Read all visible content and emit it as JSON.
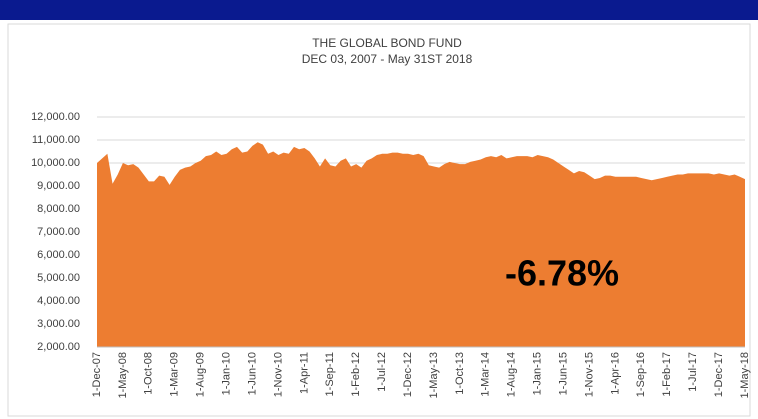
{
  "chart_data": {
    "type": "area",
    "title": "THE GLOBAL BOND FUND",
    "subtitle": "DEC 03, 2007 - May 31ST 2018",
    "annotation": "-6.78%",
    "color": "#ed7d31",
    "grid": true,
    "ylim": [
      2000,
      12000
    ],
    "yticks": [
      {
        "value": 2000,
        "label": "2,000.00"
      },
      {
        "value": 3000,
        "label": "3,000.00"
      },
      {
        "value": 4000,
        "label": "4,000.00"
      },
      {
        "value": 5000,
        "label": "5,000.00"
      },
      {
        "value": 6000,
        "label": "6,000.00"
      },
      {
        "value": 7000,
        "label": "7,000.00"
      },
      {
        "value": 8000,
        "label": "8,000.00"
      },
      {
        "value": 9000,
        "label": "9,000.00"
      },
      {
        "value": 10000,
        "label": "10,000.00"
      },
      {
        "value": 11000,
        "label": "11,000.00"
      },
      {
        "value": 12000,
        "label": "12,000.00"
      }
    ],
    "categories": [
      "1-Dec-07",
      null,
      null,
      null,
      null,
      "1-May-08",
      null,
      null,
      null,
      null,
      "1-Oct-08",
      null,
      null,
      null,
      null,
      "1-Mar-09",
      null,
      null,
      null,
      null,
      "1-Aug-09",
      null,
      null,
      null,
      null,
      "1-Jan-10",
      null,
      null,
      null,
      null,
      "1-Jun-10",
      null,
      null,
      null,
      null,
      "1-Nov-10",
      null,
      null,
      null,
      null,
      "1-Apr-11",
      null,
      null,
      null,
      null,
      "1-Sep-11",
      null,
      null,
      null,
      null,
      "1-Feb-12",
      null,
      null,
      null,
      null,
      "1-Jul-12",
      null,
      null,
      null,
      null,
      "1-Dec-12",
      null,
      null,
      null,
      null,
      "1-May-13",
      null,
      null,
      null,
      null,
      "1-Oct-13",
      null,
      null,
      null,
      null,
      "1-Mar-14",
      null,
      null,
      null,
      null,
      "1-Aug-14",
      null,
      null,
      null,
      null,
      "1-Jan-15",
      null,
      null,
      null,
      null,
      "1-Jun-15",
      null,
      null,
      null,
      null,
      "1-Nov-15",
      null,
      null,
      null,
      null,
      "1-Apr-16",
      null,
      null,
      null,
      null,
      "1-Sep-16",
      null,
      null,
      null,
      null,
      "1-Feb-17",
      null,
      null,
      null,
      null,
      "1-Jul-17",
      null,
      null,
      null,
      null,
      "1-Dec-17",
      null,
      null,
      null,
      null,
      "1-May-18"
    ],
    "values": [
      10000,
      10200,
      10400,
      9100,
      9500,
      10000,
      9900,
      9950,
      9800,
      9500,
      9200,
      9200,
      9450,
      9400,
      9050,
      9400,
      9700,
      9800,
      9850,
      10000,
      10100,
      10300,
      10350,
      10500,
      10350,
      10400,
      10600,
      10700,
      10450,
      10500,
      10750,
      10900,
      10800,
      10400,
      10500,
      10350,
      10450,
      10400,
      10700,
      10600,
      10650,
      10500,
      10200,
      9850,
      10200,
      9900,
      9850,
      10100,
      10200,
      9850,
      9950,
      9800,
      10100,
      10200,
      10350,
      10400,
      10400,
      10450,
      10450,
      10400,
      10400,
      10350,
      10400,
      10300,
      9900,
      9850,
      9800,
      9950,
      10050,
      10000,
      9950,
      9950,
      10050,
      10100,
      10150,
      10250,
      10300,
      10250,
      10350,
      10200,
      10250,
      10300,
      10300,
      10300,
      10250,
      10350,
      10300,
      10250,
      10150,
      10000,
      9850,
      9700,
      9550,
      9650,
      9600,
      9450,
      9300,
      9350,
      9450,
      9450,
      9400,
      9400,
      9400,
      9400,
      9400,
      9350,
      9300,
      9250,
      9300,
      9350,
      9400,
      9450,
      9500,
      9500,
      9550,
      9550,
      9550,
      9550,
      9550,
      9500,
      9550,
      9500,
      9450,
      9500,
      9400,
      9300
    ]
  }
}
